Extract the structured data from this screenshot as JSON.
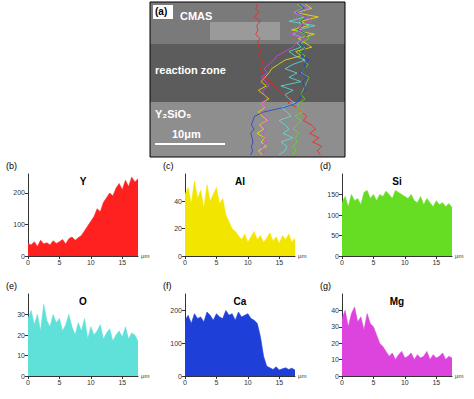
{
  "image": {
    "panel": "(a)",
    "labels": [
      "CMAS",
      "reaction zone",
      "Y₂SiO₅"
    ],
    "scale_bar": "10μm"
  },
  "chart_data": [
    {
      "type": "area",
      "panel": "(b)",
      "title": "Y",
      "x_label": "μm",
      "color": "#ff2020",
      "x": [
        0,
        0.5,
        1,
        1.5,
        2,
        2.5,
        3,
        3.5,
        4,
        4.5,
        5,
        5.5,
        6,
        6.5,
        7,
        7.5,
        8,
        8.5,
        9,
        9.5,
        10,
        10.5,
        11,
        11.5,
        12,
        12.5,
        13,
        13.5,
        14,
        14.5,
        15,
        15.5,
        16,
        16.5,
        17,
        17.5
      ],
      "values": [
        40,
        35,
        45,
        30,
        50,
        38,
        42,
        35,
        48,
        40,
        45,
        52,
        38,
        55,
        60,
        50,
        58,
        65,
        80,
        95,
        110,
        125,
        150,
        140,
        170,
        185,
        200,
        190,
        215,
        230,
        210,
        240,
        220,
        250,
        235,
        245
      ],
      "xlim": [
        0,
        17.5
      ],
      "xticks": [
        0,
        5,
        10,
        15
      ],
      "ylim": [
        0,
        260
      ],
      "yticks": [
        0,
        100,
        200
      ]
    },
    {
      "type": "area",
      "panel": "(c)",
      "title": "Al",
      "x_label": "μm",
      "color": "#f2e600",
      "x": [
        0,
        0.5,
        1,
        1.5,
        2,
        2.5,
        3,
        3.5,
        4,
        4.5,
        5,
        5.5,
        6,
        6.5,
        7,
        7.5,
        8,
        8.5,
        9,
        9.5,
        10,
        10.5,
        11,
        11.5,
        12,
        12.5,
        13,
        13.5,
        14,
        14.5,
        15,
        15.5,
        16,
        16.5,
        17,
        17.5
      ],
      "values": [
        45,
        50,
        38,
        55,
        42,
        48,
        35,
        52,
        40,
        45,
        50,
        38,
        42,
        30,
        25,
        20,
        18,
        15,
        12,
        16,
        10,
        14,
        18,
        12,
        15,
        10,
        13,
        17,
        11,
        14,
        9,
        15,
        12,
        16,
        10,
        13
      ],
      "xlim": [
        0,
        17.5
      ],
      "xticks": [
        0,
        5,
        10,
        15
      ],
      "ylim": [
        0,
        60
      ],
      "yticks": [
        0,
        20,
        40
      ]
    },
    {
      "type": "area",
      "panel": "(d)",
      "title": "Si",
      "x_label": "μm",
      "color": "#66dd22",
      "x": [
        0,
        0.5,
        1,
        1.5,
        2,
        2.5,
        3,
        3.5,
        4,
        4.5,
        5,
        5.5,
        6,
        6.5,
        7,
        7.5,
        8,
        8.5,
        9,
        9.5,
        10,
        10.5,
        11,
        11.5,
        12,
        12.5,
        13,
        13.5,
        14,
        14.5,
        15,
        15.5,
        16,
        16.5,
        17,
        17.5
      ],
      "values": [
        130,
        145,
        120,
        150,
        135,
        140,
        125,
        155,
        160,
        140,
        150,
        135,
        150,
        145,
        158,
        150,
        140,
        160,
        155,
        150,
        145,
        140,
        150,
        135,
        130,
        145,
        125,
        140,
        130,
        120,
        135,
        125,
        130,
        120,
        128,
        118
      ],
      "xlim": [
        0,
        17.5
      ],
      "xticks": [
        0,
        5,
        10,
        15
      ],
      "ylim": [
        0,
        200
      ],
      "yticks": [
        0,
        50,
        100,
        150
      ]
    },
    {
      "type": "area",
      "panel": "(e)",
      "title": "O",
      "x_label": "μm",
      "color": "#5fe0d8",
      "x": [
        0,
        0.5,
        1,
        1.5,
        2,
        2.5,
        3,
        3.5,
        4,
        4.5,
        5,
        5.5,
        6,
        6.5,
        7,
        7.5,
        8,
        8.5,
        9,
        9.5,
        10,
        10.5,
        11,
        11.5,
        12,
        12.5,
        13,
        13.5,
        14,
        14.5,
        15,
        15.5,
        16,
        16.5,
        17,
        17.5
      ],
      "values": [
        28,
        32,
        25,
        30,
        22,
        35,
        27,
        24,
        30,
        26,
        28,
        22,
        25,
        30,
        24,
        20,
        26,
        22,
        28,
        18,
        24,
        20,
        22,
        25,
        18,
        21,
        23,
        17,
        20,
        22,
        19,
        24,
        18,
        21,
        20,
        17
      ],
      "xlim": [
        0,
        17.5
      ],
      "xticks": [
        0,
        5,
        10,
        15
      ],
      "ylim": [
        0,
        40
      ],
      "yticks": [
        0,
        10,
        20,
        30
      ]
    },
    {
      "type": "area",
      "panel": "(f)",
      "title": "Ca",
      "x_label": "μm",
      "color": "#1e40d8",
      "x": [
        0,
        0.5,
        1,
        1.5,
        2,
        2.5,
        3,
        3.5,
        4,
        4.5,
        5,
        5.5,
        6,
        6.5,
        7,
        7.5,
        8,
        8.5,
        9,
        9.5,
        10,
        10.5,
        11,
        11.5,
        12,
        12.5,
        13,
        13.5,
        14,
        14.5,
        15,
        15.5,
        16,
        16.5,
        17,
        17.5
      ],
      "values": [
        170,
        185,
        160,
        190,
        175,
        180,
        165,
        195,
        185,
        170,
        190,
        180,
        175,
        200,
        185,
        190,
        170,
        195,
        180,
        185,
        190,
        175,
        170,
        160,
        120,
        60,
        30,
        25,
        20,
        28,
        18,
        22,
        25,
        20,
        24,
        18
      ],
      "xlim": [
        0,
        17.5
      ],
      "xticks": [
        0,
        5,
        10,
        15
      ],
      "ylim": [
        0,
        250
      ],
      "yticks": [
        0,
        100,
        200
      ]
    },
    {
      "type": "area",
      "panel": "(g)",
      "title": "Mg",
      "x_label": "μm",
      "color": "#dd44dd",
      "x": [
        0,
        0.5,
        1,
        1.5,
        2,
        2.5,
        3,
        3.5,
        4,
        4.5,
        5,
        5.5,
        6,
        6.5,
        7,
        7.5,
        8,
        8.5,
        9,
        9.5,
        10,
        10.5,
        11,
        11.5,
        12,
        12.5,
        13,
        13.5,
        14,
        14.5,
        15,
        15.5,
        16,
        16.5,
        17,
        17.5
      ],
      "values": [
        35,
        40,
        30,
        38,
        42,
        33,
        36,
        28,
        38,
        32,
        30,
        25,
        20,
        18,
        15,
        12,
        14,
        10,
        13,
        15,
        11,
        12,
        14,
        10,
        13,
        11,
        12,
        15,
        10,
        13,
        11,
        12,
        14,
        10,
        12,
        11
      ],
      "xlim": [
        0,
        17.5
      ],
      "xticks": [
        0,
        5,
        10,
        15
      ],
      "ylim": [
        0,
        50
      ],
      "yticks": [
        0,
        10,
        20,
        30,
        40
      ]
    }
  ]
}
